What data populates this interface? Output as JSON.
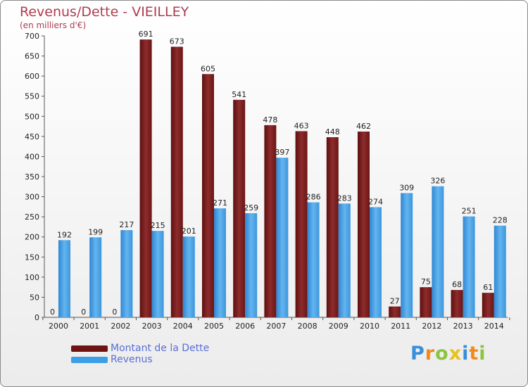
{
  "header": {
    "title": "Revenus/Dette - VIEILLEY",
    "subtitle": "(en milliers d'€)"
  },
  "chart_data": {
    "type": "bar",
    "title": "Revenus/Dette - VIEILLEY",
    "ylabel": "(en milliers d'€)",
    "xlabel": "",
    "ylim": [
      0,
      700
    ],
    "yticks": [
      0,
      50,
      100,
      150,
      200,
      250,
      300,
      350,
      400,
      450,
      500,
      550,
      600,
      650,
      700
    ],
    "grid": false,
    "legend_position": "bottom-left",
    "categories": [
      "2000",
      "2001",
      "2002",
      "2003",
      "2004",
      "2005",
      "2006",
      "2007",
      "2008",
      "2009",
      "2010",
      "2011",
      "2012",
      "2013",
      "2014"
    ],
    "series": [
      {
        "name": "Montant de la Dette",
        "color": "#8b2a2a",
        "values": [
          0,
          0,
          0,
          691,
          673,
          605,
          541,
          478,
          463,
          448,
          462,
          27,
          75,
          68,
          61
        ]
      },
      {
        "name": "Revenus",
        "color": "#4ea6e6",
        "values": [
          192,
          199,
          217,
          215,
          201,
          271,
          259,
          397,
          286,
          283,
          274,
          309,
          326,
          251,
          228
        ]
      }
    ]
  },
  "legend": {
    "items": [
      {
        "label": "Montant de la Dette",
        "color": "#6e1212"
      },
      {
        "label": "Revenus",
        "color": "#3d9ee8"
      }
    ]
  },
  "logo": {
    "letters": [
      {
        "ch": "P",
        "color": "#3a8fd9"
      },
      {
        "ch": "r",
        "color": "#f08a1c"
      },
      {
        "ch": "o",
        "color": "#8bc53f"
      },
      {
        "ch": "x",
        "color": "#e8c21a"
      },
      {
        "ch": "i",
        "color": "#3a8fd9"
      },
      {
        "ch": "t",
        "color": "#f08a1c"
      },
      {
        "ch": "i",
        "color": "#8bc53f"
      }
    ]
  }
}
